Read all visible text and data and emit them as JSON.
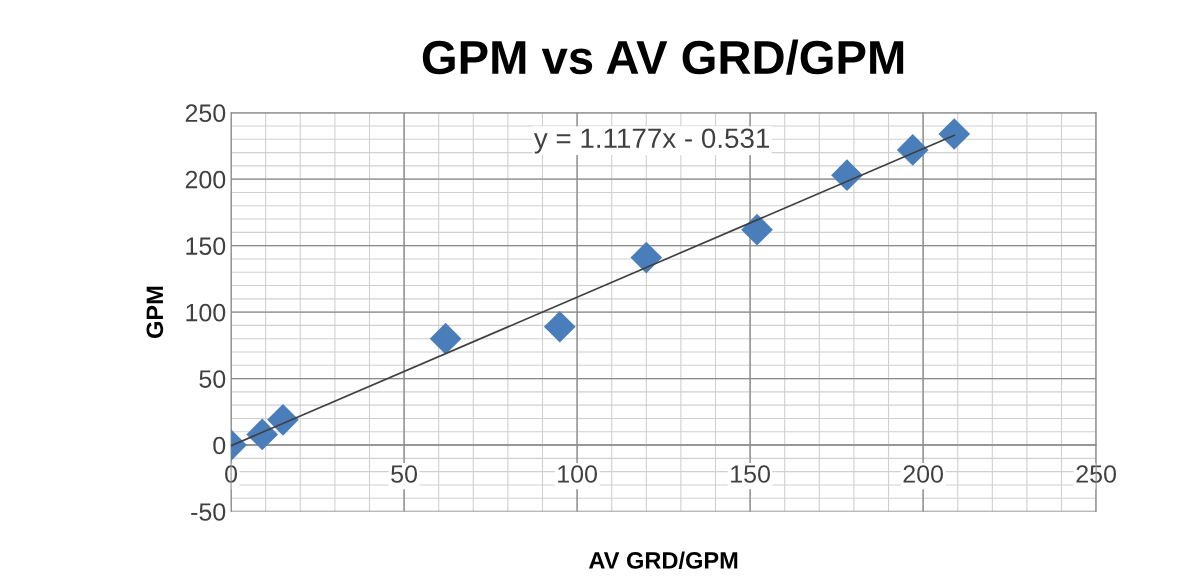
{
  "chart_data": {
    "type": "scatter",
    "title": "GPM vs AV GRD/GPM",
    "xlabel": "AV GRD/GPM",
    "ylabel": "GPM",
    "series": [
      {
        "color": "#4a7ebb",
        "marker": "diamond",
        "x": [
          0,
          9,
          15,
          62,
          95,
          120,
          152,
          178,
          197,
          209
        ],
        "values": [
          0,
          8,
          19,
          80,
          89,
          141,
          162,
          203,
          222,
          234
        ]
      },
      {
        "type": "line",
        "color": "#404040",
        "marker": "none",
        "x": [
          0,
          209
        ],
        "values": [
          -0.5,
          233
        ]
      }
    ],
    "annotations": [
      "y = 1.1177x - 0.531"
    ],
    "xlim": [
      0,
      250
    ],
    "ylim": [
      -50,
      250
    ],
    "xticks": [
      0,
      50,
      100,
      150,
      200,
      250
    ],
    "yticks": [
      -50,
      0,
      50,
      100,
      150,
      200,
      250
    ],
    "grid": true,
    "legend": false
  }
}
